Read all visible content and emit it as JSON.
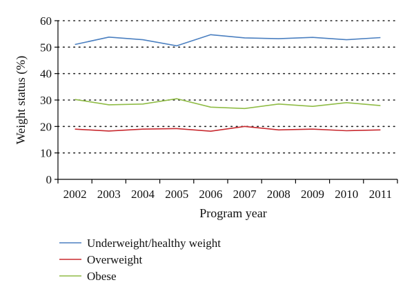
{
  "chart_data": {
    "type": "line",
    "title": "",
    "xlabel": "Program year",
    "ylabel": "Weight status (%)",
    "ylim": [
      0,
      60
    ],
    "yticks": [
      0,
      10,
      20,
      30,
      40,
      50,
      60
    ],
    "grid": "dotted horizontal",
    "categories": [
      "2002",
      "2003",
      "2004",
      "2005",
      "2006",
      "2007",
      "2008",
      "2009",
      "2010",
      "2011"
    ],
    "legend_position": "bottom-left",
    "series": [
      {
        "name": "Underweight/healthy weight",
        "color": "#4a7fc0",
        "values": [
          51,
          53.8,
          52.8,
          50.5,
          54.7,
          53.5,
          53.2,
          53.7,
          52.8,
          53.6
        ]
      },
      {
        "name": "Overweight",
        "color": "#c8282e",
        "values": [
          19,
          18.3,
          19,
          19.2,
          18.2,
          20,
          18.7,
          19,
          18.4,
          18.7
        ]
      },
      {
        "name": "Obese",
        "color": "#8fbc45",
        "values": [
          30.2,
          28.2,
          28.5,
          30.5,
          27.3,
          26.8,
          28.5,
          27.6,
          29,
          27.9
        ]
      }
    ]
  }
}
